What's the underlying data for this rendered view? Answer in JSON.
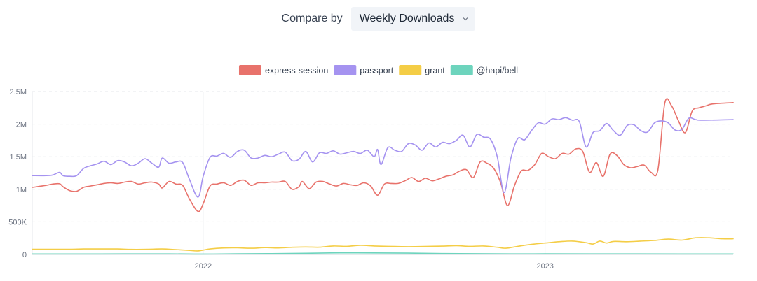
{
  "compare": {
    "label": "Compare by",
    "selected": "Weekly Downloads",
    "chevron_icon": "chevron-down-icon"
  },
  "chart_data": {
    "type": "line",
    "title": "",
    "xlabel": "",
    "ylabel": "",
    "legend_position": "top-center",
    "grid": "horizontal-dashed-and-year-vertical",
    "y_ticks": [
      {
        "value": 0,
        "label": "0"
      },
      {
        "value": 500000,
        "label": "500K"
      },
      {
        "value": 1000000,
        "label": "1M"
      },
      {
        "value": 1500000,
        "label": "1.5M"
      },
      {
        "value": 2000000,
        "label": "2M"
      },
      {
        "value": 2500000,
        "label": "2.5M"
      }
    ],
    "ylim": [
      0,
      2500000
    ],
    "x_ticks": [
      {
        "value": 2022.0,
        "label": "2022"
      },
      {
        "value": 2023.0,
        "label": "2023"
      }
    ],
    "xlim": [
      2021.5,
      2023.55
    ],
    "series": [
      {
        "name": "express-session",
        "color": "#e8726b",
        "points": [
          [
            2021.5,
            1030000
          ],
          [
            2021.54,
            1060000
          ],
          [
            2021.56,
            1080000
          ],
          [
            2021.58,
            1085000
          ],
          [
            2021.59,
            1040000
          ],
          [
            2021.61,
            980000
          ],
          [
            2021.63,
            970000
          ],
          [
            2021.65,
            1030000
          ],
          [
            2021.67,
            1050000
          ],
          [
            2021.69,
            1070000
          ],
          [
            2021.71,
            1090000
          ],
          [
            2021.73,
            1100000
          ],
          [
            2021.75,
            1090000
          ],
          [
            2021.77,
            1110000
          ],
          [
            2021.79,
            1120000
          ],
          [
            2021.81,
            1080000
          ],
          [
            2021.83,
            1100000
          ],
          [
            2021.85,
            1110000
          ],
          [
            2021.87,
            1080000
          ],
          [
            2021.88,
            1020000
          ],
          [
            2021.9,
            1120000
          ],
          [
            2021.92,
            1080000
          ],
          [
            2021.94,
            1060000
          ],
          [
            2021.96,
            850000
          ],
          [
            2021.985,
            660000
          ],
          [
            2022.0,
            780000
          ],
          [
            2022.02,
            1050000
          ],
          [
            2022.04,
            1080000
          ],
          [
            2022.06,
            1100000
          ],
          [
            2022.08,
            1060000
          ],
          [
            2022.1,
            1120000
          ],
          [
            2022.12,
            1140000
          ],
          [
            2022.14,
            1060000
          ],
          [
            2022.16,
            1100000
          ],
          [
            2022.18,
            1100000
          ],
          [
            2022.2,
            1110000
          ],
          [
            2022.22,
            1110000
          ],
          [
            2022.24,
            1120000
          ],
          [
            2022.26,
            1000000
          ],
          [
            2022.28,
            1040000
          ],
          [
            2022.29,
            1120000
          ],
          [
            2022.31,
            1010000
          ],
          [
            2022.33,
            1110000
          ],
          [
            2022.35,
            1120000
          ],
          [
            2022.37,
            1080000
          ],
          [
            2022.39,
            1050000
          ],
          [
            2022.41,
            1090000
          ],
          [
            2022.43,
            1070000
          ],
          [
            2022.45,
            1060000
          ],
          [
            2022.47,
            1100000
          ],
          [
            2022.49,
            1050000
          ],
          [
            2022.51,
            910000
          ],
          [
            2022.53,
            1080000
          ],
          [
            2022.55,
            1090000
          ],
          [
            2022.57,
            1090000
          ],
          [
            2022.59,
            1130000
          ],
          [
            2022.61,
            1180000
          ],
          [
            2022.63,
            1120000
          ],
          [
            2022.65,
            1170000
          ],
          [
            2022.67,
            1130000
          ],
          [
            2022.69,
            1160000
          ],
          [
            2022.71,
            1200000
          ],
          [
            2022.73,
            1220000
          ],
          [
            2022.75,
            1280000
          ],
          [
            2022.77,
            1300000
          ],
          [
            2022.79,
            1180000
          ],
          [
            2022.81,
            1420000
          ],
          [
            2022.83,
            1400000
          ],
          [
            2022.85,
            1320000
          ],
          [
            2022.87,
            1100000
          ],
          [
            2022.89,
            750000
          ],
          [
            2022.91,
            1050000
          ],
          [
            2022.93,
            1280000
          ],
          [
            2022.95,
            1290000
          ],
          [
            2022.97,
            1380000
          ],
          [
            2022.99,
            1550000
          ],
          [
            2023.01,
            1500000
          ],
          [
            2023.03,
            1470000
          ],
          [
            2023.05,
            1550000
          ],
          [
            2023.07,
            1540000
          ],
          [
            2023.09,
            1620000
          ],
          [
            2023.11,
            1580000
          ],
          [
            2023.13,
            1260000
          ],
          [
            2023.15,
            1410000
          ],
          [
            2023.17,
            1200000
          ],
          [
            2023.19,
            1540000
          ],
          [
            2023.21,
            1520000
          ],
          [
            2023.23,
            1380000
          ],
          [
            2023.25,
            1330000
          ],
          [
            2023.27,
            1350000
          ],
          [
            2023.29,
            1370000
          ],
          [
            2023.31,
            1260000
          ],
          [
            2023.33,
            1300000
          ],
          [
            2023.35,
            2320000
          ],
          [
            2023.37,
            2280000
          ],
          [
            2023.39,
            2050000
          ],
          [
            2023.41,
            1870000
          ],
          [
            2023.43,
            2200000
          ],
          [
            2023.45,
            2250000
          ],
          [
            2023.47,
            2280000
          ],
          [
            2023.49,
            2310000
          ],
          [
            2023.55,
            2330000
          ]
        ]
      },
      {
        "name": "passport",
        "color": "#a593f0",
        "points": [
          [
            2021.5,
            1210000
          ],
          [
            2021.54,
            1210000
          ],
          [
            2021.56,
            1220000
          ],
          [
            2021.58,
            1260000
          ],
          [
            2021.59,
            1210000
          ],
          [
            2021.61,
            1200000
          ],
          [
            2021.63,
            1210000
          ],
          [
            2021.65,
            1320000
          ],
          [
            2021.67,
            1360000
          ],
          [
            2021.69,
            1390000
          ],
          [
            2021.71,
            1430000
          ],
          [
            2021.73,
            1380000
          ],
          [
            2021.75,
            1440000
          ],
          [
            2021.77,
            1420000
          ],
          [
            2021.79,
            1360000
          ],
          [
            2021.81,
            1400000
          ],
          [
            2021.83,
            1470000
          ],
          [
            2021.85,
            1400000
          ],
          [
            2021.87,
            1340000
          ],
          [
            2021.88,
            1480000
          ],
          [
            2021.9,
            1400000
          ],
          [
            2021.92,
            1420000
          ],
          [
            2021.94,
            1410000
          ],
          [
            2021.96,
            1150000
          ],
          [
            2021.985,
            880000
          ],
          [
            2022.0,
            1200000
          ],
          [
            2022.02,
            1490000
          ],
          [
            2022.04,
            1510000
          ],
          [
            2022.06,
            1550000
          ],
          [
            2022.08,
            1490000
          ],
          [
            2022.1,
            1580000
          ],
          [
            2022.12,
            1600000
          ],
          [
            2022.14,
            1480000
          ],
          [
            2022.16,
            1480000
          ],
          [
            2022.18,
            1520000
          ],
          [
            2022.2,
            1500000
          ],
          [
            2022.22,
            1540000
          ],
          [
            2022.24,
            1570000
          ],
          [
            2022.26,
            1440000
          ],
          [
            2022.28,
            1460000
          ],
          [
            2022.3,
            1580000
          ],
          [
            2022.32,
            1420000
          ],
          [
            2022.34,
            1560000
          ],
          [
            2022.36,
            1550000
          ],
          [
            2022.38,
            1590000
          ],
          [
            2022.4,
            1540000
          ],
          [
            2022.42,
            1560000
          ],
          [
            2022.44,
            1580000
          ],
          [
            2022.46,
            1550000
          ],
          [
            2022.48,
            1600000
          ],
          [
            2022.5,
            1500000
          ],
          [
            2022.51,
            1610000
          ],
          [
            2022.52,
            1380000
          ],
          [
            2022.54,
            1640000
          ],
          [
            2022.56,
            1600000
          ],
          [
            2022.58,
            1580000
          ],
          [
            2022.6,
            1700000
          ],
          [
            2022.62,
            1680000
          ],
          [
            2022.64,
            1600000
          ],
          [
            2022.66,
            1710000
          ],
          [
            2022.68,
            1650000
          ],
          [
            2022.7,
            1720000
          ],
          [
            2022.72,
            1700000
          ],
          [
            2022.74,
            1750000
          ],
          [
            2022.76,
            1830000
          ],
          [
            2022.78,
            1650000
          ],
          [
            2022.8,
            1840000
          ],
          [
            2022.82,
            1800000
          ],
          [
            2022.84,
            1770000
          ],
          [
            2022.86,
            1500000
          ],
          [
            2022.88,
            950000
          ],
          [
            2022.9,
            1480000
          ],
          [
            2022.92,
            1780000
          ],
          [
            2022.94,
            1760000
          ],
          [
            2022.96,
            1900000
          ],
          [
            2022.98,
            2020000
          ],
          [
            2023.0,
            2000000
          ],
          [
            2023.02,
            2080000
          ],
          [
            2023.04,
            2070000
          ],
          [
            2023.06,
            2100000
          ],
          [
            2023.08,
            2060000
          ],
          [
            2023.1,
            2040000
          ],
          [
            2023.12,
            1650000
          ],
          [
            2023.14,
            1870000
          ],
          [
            2023.16,
            1900000
          ],
          [
            2023.18,
            2010000
          ],
          [
            2023.2,
            1900000
          ],
          [
            2023.22,
            1830000
          ],
          [
            2023.24,
            1980000
          ],
          [
            2023.26,
            1990000
          ],
          [
            2023.28,
            1900000
          ],
          [
            2023.3,
            1880000
          ],
          [
            2023.32,
            2020000
          ],
          [
            2023.34,
            2050000
          ],
          [
            2023.36,
            2020000
          ],
          [
            2023.38,
            1910000
          ],
          [
            2023.4,
            1920000
          ],
          [
            2023.42,
            2090000
          ],
          [
            2023.44,
            2070000
          ],
          [
            2023.46,
            2060000
          ],
          [
            2023.55,
            2070000
          ]
        ]
      },
      {
        "name": "grant",
        "color": "#f4cd46",
        "points": [
          [
            2021.5,
            80000
          ],
          [
            2021.56,
            80000
          ],
          [
            2021.61,
            80000
          ],
          [
            2021.65,
            85000
          ],
          [
            2021.7,
            85000
          ],
          [
            2021.75,
            85000
          ],
          [
            2021.79,
            78000
          ],
          [
            2021.84,
            80000
          ],
          [
            2021.88,
            85000
          ],
          [
            2021.92,
            75000
          ],
          [
            2021.96,
            62000
          ],
          [
            2021.985,
            55000
          ],
          [
            2022.02,
            85000
          ],
          [
            2022.06,
            100000
          ],
          [
            2022.1,
            102000
          ],
          [
            2022.14,
            95000
          ],
          [
            2022.18,
            105000
          ],
          [
            2022.22,
            100000
          ],
          [
            2022.26,
            110000
          ],
          [
            2022.3,
            115000
          ],
          [
            2022.34,
            112000
          ],
          [
            2022.38,
            130000
          ],
          [
            2022.42,
            125000
          ],
          [
            2022.46,
            140000
          ],
          [
            2022.5,
            130000
          ],
          [
            2022.54,
            125000
          ],
          [
            2022.58,
            120000
          ],
          [
            2022.62,
            120000
          ],
          [
            2022.66,
            125000
          ],
          [
            2022.7,
            128000
          ],
          [
            2022.74,
            135000
          ],
          [
            2022.78,
            125000
          ],
          [
            2022.82,
            130000
          ],
          [
            2022.86,
            110000
          ],
          [
            2022.885,
            95000
          ],
          [
            2022.92,
            125000
          ],
          [
            2022.96,
            155000
          ],
          [
            2023.0,
            175000
          ],
          [
            2023.04,
            195000
          ],
          [
            2023.08,
            205000
          ],
          [
            2023.12,
            180000
          ],
          [
            2023.14,
            160000
          ],
          [
            2023.16,
            205000
          ],
          [
            2023.18,
            175000
          ],
          [
            2023.2,
            200000
          ],
          [
            2023.24,
            195000
          ],
          [
            2023.28,
            205000
          ],
          [
            2023.32,
            215000
          ],
          [
            2023.36,
            235000
          ],
          [
            2023.4,
            220000
          ],
          [
            2023.44,
            255000
          ],
          [
            2023.48,
            255000
          ],
          [
            2023.52,
            240000
          ],
          [
            2023.55,
            240000
          ]
        ]
      },
      {
        "name": "@hapi/bell",
        "color": "#6dd4bd",
        "points": [
          [
            2021.5,
            8000
          ],
          [
            2021.7,
            8000
          ],
          [
            2021.9,
            9000
          ],
          [
            2022.0,
            6000
          ],
          [
            2022.1,
            10000
          ],
          [
            2022.3,
            18000
          ],
          [
            2022.4,
            25000
          ],
          [
            2022.5,
            24000
          ],
          [
            2022.6,
            20000
          ],
          [
            2022.7,
            14000
          ],
          [
            2022.8,
            12000
          ],
          [
            2022.9,
            9000
          ],
          [
            2023.0,
            10000
          ],
          [
            2023.2,
            9000
          ],
          [
            2023.4,
            8000
          ],
          [
            2023.55,
            8000
          ]
        ]
      }
    ]
  }
}
